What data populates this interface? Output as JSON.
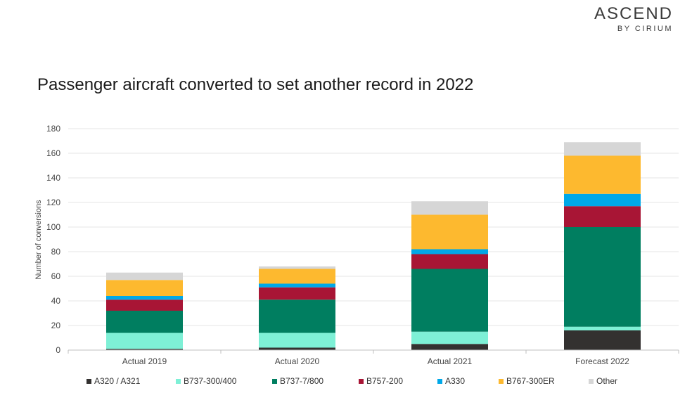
{
  "logo": {
    "main": "ASCEND",
    "sub": "BY CIRIUM"
  },
  "chart_data": {
    "type": "bar",
    "stacked": true,
    "title": "Passenger aircraft converted to set another record in 2022",
    "xlabel": "",
    "ylabel": "Number of conversions",
    "ylim": [
      0,
      180
    ],
    "yticks": [
      0,
      20,
      40,
      60,
      80,
      100,
      120,
      140,
      160,
      180
    ],
    "grid": true,
    "legend_position": "bottom",
    "categories": [
      "Actual 2019",
      "Actual 2020",
      "Actual 2021",
      "Forecast 2022"
    ],
    "series": [
      {
        "name": "A320 / A321",
        "color": "#333130",
        "values": [
          1,
          2,
          5,
          16
        ]
      },
      {
        "name": "B737-300/400",
        "color": "#7ef0d6",
        "values": [
          13,
          12,
          10,
          3
        ]
      },
      {
        "name": "B737-7/800",
        "color": "#007e60",
        "values": [
          18,
          27,
          51,
          81
        ]
      },
      {
        "name": "B757-200",
        "color": "#a81535",
        "values": [
          9,
          10,
          12,
          17
        ]
      },
      {
        "name": "A330",
        "color": "#00a8e8",
        "values": [
          3,
          3,
          4,
          10
        ]
      },
      {
        "name": "B767-300ER",
        "color": "#fdb92f",
        "values": [
          13,
          12,
          28,
          31
        ]
      },
      {
        "name": "Other",
        "color": "#d6d6d6",
        "values": [
          6,
          2,
          11,
          11
        ]
      }
    ]
  }
}
